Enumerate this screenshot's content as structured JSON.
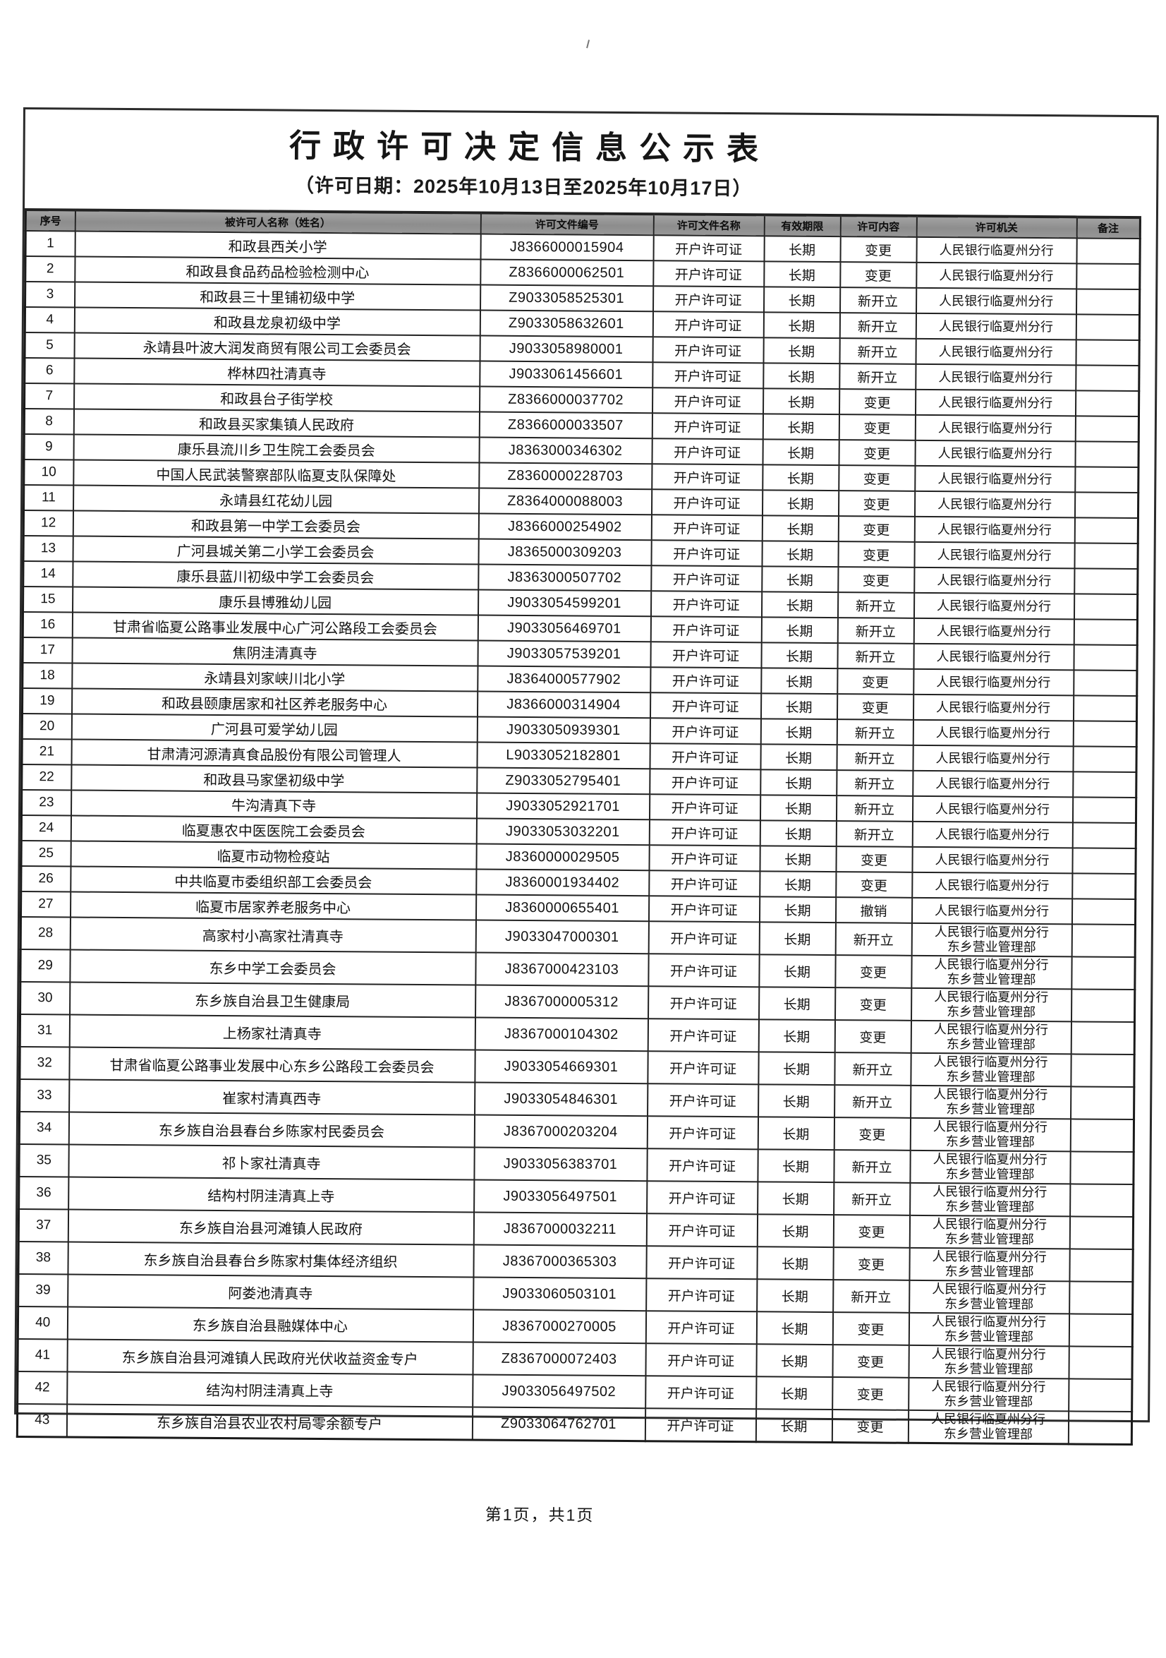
{
  "page": {
    "title": "行政许可决定信息公示表",
    "subtitle": "（许可日期：2025年10月13日至2025年10月17日）",
    "footer": "第1页，共1页"
  },
  "colors": {
    "header_shading": "#979797",
    "table_border": "#222222",
    "text": "#121212"
  },
  "table": {
    "headers": [
      "序号",
      "被许可人名称（姓名）",
      "许可文件编号",
      "许可文件名称",
      "有效期限",
      "许可内容",
      "许可机关",
      "备注"
    ],
    "rows": [
      {
        "no": "1",
        "name": "和政县西关小学",
        "doc_no": "J8366000015904",
        "doc_name": "开户许可证",
        "validity": "长期",
        "content": "变更",
        "authority": [
          "人民银行临夏州分行"
        ],
        "remark": ""
      },
      {
        "no": "2",
        "name": "和政县食品药品检验检测中心",
        "doc_no": "Z8366000062501",
        "doc_name": "开户许可证",
        "validity": "长期",
        "content": "变更",
        "authority": [
          "人民银行临夏州分行"
        ],
        "remark": ""
      },
      {
        "no": "3",
        "name": "和政县三十里铺初级中学",
        "doc_no": "Z9033058525301",
        "doc_name": "开户许可证",
        "validity": "长期",
        "content": "新开立",
        "authority": [
          "人民银行临夏州分行"
        ],
        "remark": ""
      },
      {
        "no": "4",
        "name": "和政县龙泉初级中学",
        "doc_no": "Z9033058632601",
        "doc_name": "开户许可证",
        "validity": "长期",
        "content": "新开立",
        "authority": [
          "人民银行临夏州分行"
        ],
        "remark": ""
      },
      {
        "no": "5",
        "name": "永靖县叶波大润发商贸有限公司工会委员会",
        "doc_no": "J9033058980001",
        "doc_name": "开户许可证",
        "validity": "长期",
        "content": "新开立",
        "authority": [
          "人民银行临夏州分行"
        ],
        "remark": ""
      },
      {
        "no": "6",
        "name": "桦林四社清真寺",
        "doc_no": "J9033061456601",
        "doc_name": "开户许可证",
        "validity": "长期",
        "content": "新开立",
        "authority": [
          "人民银行临夏州分行"
        ],
        "remark": ""
      },
      {
        "no": "7",
        "name": "和政县台子街学校",
        "doc_no": "Z8366000037702",
        "doc_name": "开户许可证",
        "validity": "长期",
        "content": "变更",
        "authority": [
          "人民银行临夏州分行"
        ],
        "remark": ""
      },
      {
        "no": "8",
        "name": "和政县买家集镇人民政府",
        "doc_no": "Z8366000033507",
        "doc_name": "开户许可证",
        "validity": "长期",
        "content": "变更",
        "authority": [
          "人民银行临夏州分行"
        ],
        "remark": ""
      },
      {
        "no": "9",
        "name": "康乐县流川乡卫生院工会委员会",
        "doc_no": "J8363000346302",
        "doc_name": "开户许可证",
        "validity": "长期",
        "content": "变更",
        "authority": [
          "人民银行临夏州分行"
        ],
        "remark": ""
      },
      {
        "no": "10",
        "name": "中国人民武装警察部队临夏支队保障处",
        "doc_no": "Z8360000228703",
        "doc_name": "开户许可证",
        "validity": "长期",
        "content": "变更",
        "authority": [
          "人民银行临夏州分行"
        ],
        "remark": ""
      },
      {
        "no": "11",
        "name": "永靖县红花幼儿园",
        "doc_no": "Z8364000088003",
        "doc_name": "开户许可证",
        "validity": "长期",
        "content": "变更",
        "authority": [
          "人民银行临夏州分行"
        ],
        "remark": ""
      },
      {
        "no": "12",
        "name": "和政县第一中学工会委员会",
        "doc_no": "J8366000254902",
        "doc_name": "开户许可证",
        "validity": "长期",
        "content": "变更",
        "authority": [
          "人民银行临夏州分行"
        ],
        "remark": ""
      },
      {
        "no": "13",
        "name": "广河县城关第二小学工会委员会",
        "doc_no": "J8365000309203",
        "doc_name": "开户许可证",
        "validity": "长期",
        "content": "变更",
        "authority": [
          "人民银行临夏州分行"
        ],
        "remark": ""
      },
      {
        "no": "14",
        "name": "康乐县蓝川初级中学工会委员会",
        "doc_no": "J8363000507702",
        "doc_name": "开户许可证",
        "validity": "长期",
        "content": "变更",
        "authority": [
          "人民银行临夏州分行"
        ],
        "remark": ""
      },
      {
        "no": "15",
        "name": "康乐县博雅幼儿园",
        "doc_no": "J9033054599201",
        "doc_name": "开户许可证",
        "validity": "长期",
        "content": "新开立",
        "authority": [
          "人民银行临夏州分行"
        ],
        "remark": ""
      },
      {
        "no": "16",
        "name": "甘肃省临夏公路事业发展中心广河公路段工会委员会",
        "doc_no": "J9033056469701",
        "doc_name": "开户许可证",
        "validity": "长期",
        "content": "新开立",
        "authority": [
          "人民银行临夏州分行"
        ],
        "remark": ""
      },
      {
        "no": "17",
        "name": "焦阴洼清真寺",
        "doc_no": "J9033057539201",
        "doc_name": "开户许可证",
        "validity": "长期",
        "content": "新开立",
        "authority": [
          "人民银行临夏州分行"
        ],
        "remark": ""
      },
      {
        "no": "18",
        "name": "永靖县刘家峡川北小学",
        "doc_no": "J8364000577902",
        "doc_name": "开户许可证",
        "validity": "长期",
        "content": "变更",
        "authority": [
          "人民银行临夏州分行"
        ],
        "remark": ""
      },
      {
        "no": "19",
        "name": "和政县颐康居家和社区养老服务中心",
        "doc_no": "J8366000314904",
        "doc_name": "开户许可证",
        "validity": "长期",
        "content": "变更",
        "authority": [
          "人民银行临夏州分行"
        ],
        "remark": ""
      },
      {
        "no": "20",
        "name": "广河县可爱学幼儿园",
        "doc_no": "J9033050939301",
        "doc_name": "开户许可证",
        "validity": "长期",
        "content": "新开立",
        "authority": [
          "人民银行临夏州分行"
        ],
        "remark": ""
      },
      {
        "no": "21",
        "name": "甘肃清河源清真食品股份有限公司管理人",
        "doc_no": "L9033052182801",
        "doc_name": "开户许可证",
        "validity": "长期",
        "content": "新开立",
        "authority": [
          "人民银行临夏州分行"
        ],
        "remark": ""
      },
      {
        "no": "22",
        "name": "和政县马家堡初级中学",
        "doc_no": "Z9033052795401",
        "doc_name": "开户许可证",
        "validity": "长期",
        "content": "新开立",
        "authority": [
          "人民银行临夏州分行"
        ],
        "remark": ""
      },
      {
        "no": "23",
        "name": "牛沟清真下寺",
        "doc_no": "J9033052921701",
        "doc_name": "开户许可证",
        "validity": "长期",
        "content": "新开立",
        "authority": [
          "人民银行临夏州分行"
        ],
        "remark": ""
      },
      {
        "no": "24",
        "name": "临夏惠农中医医院工会委员会",
        "doc_no": "J9033053032201",
        "doc_name": "开户许可证",
        "validity": "长期",
        "content": "新开立",
        "authority": [
          "人民银行临夏州分行"
        ],
        "remark": ""
      },
      {
        "no": "25",
        "name": "临夏市动物检疫站",
        "doc_no": "J8360000029505",
        "doc_name": "开户许可证",
        "validity": "长期",
        "content": "变更",
        "authority": [
          "人民银行临夏州分行"
        ],
        "remark": ""
      },
      {
        "no": "26",
        "name": "中共临夏市委组织部工会委员会",
        "doc_no": "J8360001934402",
        "doc_name": "开户许可证",
        "validity": "长期",
        "content": "变更",
        "authority": [
          "人民银行临夏州分行"
        ],
        "remark": ""
      },
      {
        "no": "27",
        "name": "临夏市居家养老服务中心",
        "doc_no": "J8360000655401",
        "doc_name": "开户许可证",
        "validity": "长期",
        "content": "撤销",
        "authority": [
          "人民银行临夏州分行"
        ],
        "remark": ""
      },
      {
        "no": "28",
        "name": "高家村小高家社清真寺",
        "doc_no": "J9033047000301",
        "doc_name": "开户许可证",
        "validity": "长期",
        "content": "新开立",
        "authority": [
          "人民银行临夏州分行",
          "东乡营业管理部"
        ],
        "remark": ""
      },
      {
        "no": "29",
        "name": "东乡中学工会委员会",
        "doc_no": "J8367000423103",
        "doc_name": "开户许可证",
        "validity": "长期",
        "content": "变更",
        "authority": [
          "人民银行临夏州分行",
          "东乡营业管理部"
        ],
        "remark": ""
      },
      {
        "no": "30",
        "name": "东乡族自治县卫生健康局",
        "doc_no": "J8367000005312",
        "doc_name": "开户许可证",
        "validity": "长期",
        "content": "变更",
        "authority": [
          "人民银行临夏州分行",
          "东乡营业管理部"
        ],
        "remark": ""
      },
      {
        "no": "31",
        "name": "上杨家社清真寺",
        "doc_no": "J8367000104302",
        "doc_name": "开户许可证",
        "validity": "长期",
        "content": "变更",
        "authority": [
          "人民银行临夏州分行",
          "东乡营业管理部"
        ],
        "remark": ""
      },
      {
        "no": "32",
        "name": "甘肃省临夏公路事业发展中心东乡公路段工会委员会",
        "doc_no": "J9033054669301",
        "doc_name": "开户许可证",
        "validity": "长期",
        "content": "新开立",
        "authority": [
          "人民银行临夏州分行",
          "东乡营业管理部"
        ],
        "remark": ""
      },
      {
        "no": "33",
        "name": "崔家村清真西寺",
        "doc_no": "J9033054846301",
        "doc_name": "开户许可证",
        "validity": "长期",
        "content": "新开立",
        "authority": [
          "人民银行临夏州分行",
          "东乡营业管理部"
        ],
        "remark": ""
      },
      {
        "no": "34",
        "name": "东乡族自治县春台乡陈家村民委员会",
        "doc_no": "J8367000203204",
        "doc_name": "开户许可证",
        "validity": "长期",
        "content": "变更",
        "authority": [
          "人民银行临夏州分行",
          "东乡营业管理部"
        ],
        "remark": ""
      },
      {
        "no": "35",
        "name": "祁卜家社清真寺",
        "doc_no": "J9033056383701",
        "doc_name": "开户许可证",
        "validity": "长期",
        "content": "新开立",
        "authority": [
          "人民银行临夏州分行",
          "东乡营业管理部"
        ],
        "remark": ""
      },
      {
        "no": "36",
        "name": "结构村阴洼清真上寺",
        "doc_no": "J9033056497501",
        "doc_name": "开户许可证",
        "validity": "长期",
        "content": "新开立",
        "authority": [
          "人民银行临夏州分行",
          "东乡营业管理部"
        ],
        "remark": ""
      },
      {
        "no": "37",
        "name": "东乡族自治县河滩镇人民政府",
        "doc_no": "J8367000032211",
        "doc_name": "开户许可证",
        "validity": "长期",
        "content": "变更",
        "authority": [
          "人民银行临夏州分行",
          "东乡营业管理部"
        ],
        "remark": ""
      },
      {
        "no": "38",
        "name": "东乡族自治县春台乡陈家村集体经济组织",
        "doc_no": "J8367000365303",
        "doc_name": "开户许可证",
        "validity": "长期",
        "content": "变更",
        "authority": [
          "人民银行临夏州分行",
          "东乡营业管理部"
        ],
        "remark": ""
      },
      {
        "no": "39",
        "name": "阿娄池清真寺",
        "doc_no": "J9033060503101",
        "doc_name": "开户许可证",
        "validity": "长期",
        "content": "新开立",
        "authority": [
          "人民银行临夏州分行",
          "东乡营业管理部"
        ],
        "remark": ""
      },
      {
        "no": "40",
        "name": "东乡族自治县融媒体中心",
        "doc_no": "J8367000270005",
        "doc_name": "开户许可证",
        "validity": "长期",
        "content": "变更",
        "authority": [
          "人民银行临夏州分行",
          "东乡营业管理部"
        ],
        "remark": ""
      },
      {
        "no": "41",
        "name": "东乡族自治县河滩镇人民政府光伏收益资金专户",
        "doc_no": "Z8367000072403",
        "doc_name": "开户许可证",
        "validity": "长期",
        "content": "变更",
        "authority": [
          "人民银行临夏州分行",
          "东乡营业管理部"
        ],
        "remark": ""
      },
      {
        "no": "42",
        "name": "结沟村阴洼清真上寺",
        "doc_no": "J9033056497502",
        "doc_name": "开户许可证",
        "validity": "长期",
        "content": "变更",
        "authority": [
          "人民银行临夏州分行",
          "东乡营业管理部"
        ],
        "remark": ""
      },
      {
        "no": "43",
        "name": "东乡族自治县农业农村局零余额专户",
        "doc_no": "Z9033064762701",
        "doc_name": "开户许可证",
        "validity": "长期",
        "content": "变更",
        "authority": [
          "人民银行临夏州分行",
          "东乡营业管理部"
        ],
        "remark": ""
      }
    ]
  }
}
